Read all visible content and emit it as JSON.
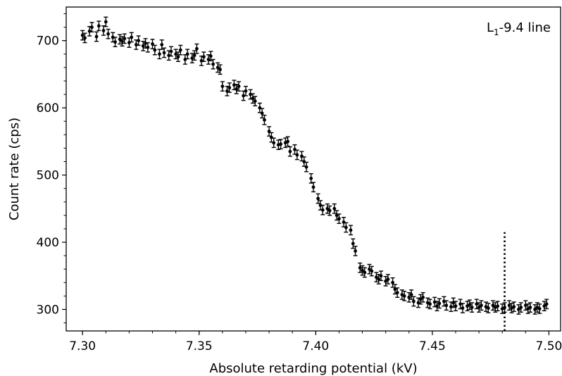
{
  "chart_data": {
    "type": "scatter",
    "title": "",
    "xlabel": "Absolute retarding potential (kV)",
    "ylabel": "Count rate (cps)",
    "annotation": {
      "base": "L",
      "sub": "1",
      "rest": "-9.4 line"
    },
    "xlim": [
      7.293,
      7.505
    ],
    "ylim": [
      268,
      750
    ],
    "xticks": [
      7.3,
      7.35,
      7.4,
      7.45,
      7.5
    ],
    "xtick_labels": [
      "7.30",
      "7.35",
      "7.40",
      "7.45",
      "7.50"
    ],
    "yticks": [
      300,
      400,
      500,
      600,
      700
    ],
    "ytick_labels": [
      "300",
      "400",
      "500",
      "600",
      "700"
    ],
    "grid": false,
    "reference_line": {
      "x": 7.481,
      "ymax": 415,
      "style": "dotted"
    },
    "error_bar_half_height": 7,
    "marker_color": "#000000",
    "series": [
      {
        "points": [
          [
            7.3,
            708
          ],
          [
            7.301,
            704
          ],
          [
            7.303,
            714
          ],
          [
            7.304,
            720
          ],
          [
            7.306,
            706
          ],
          [
            7.307,
            722
          ],
          [
            7.309,
            715
          ],
          [
            7.31,
            728
          ],
          [
            7.311,
            710
          ],
          [
            7.313,
            705
          ],
          [
            7.314,
            698
          ],
          [
            7.316,
            702
          ],
          [
            7.317,
            699
          ],
          [
            7.318,
            703
          ],
          [
            7.32,
            697
          ],
          [
            7.321,
            705
          ],
          [
            7.323,
            694
          ],
          [
            7.324,
            700
          ],
          [
            7.326,
            692
          ],
          [
            7.327,
            696
          ],
          [
            7.328,
            690
          ],
          [
            7.33,
            695
          ],
          [
            7.331,
            686
          ],
          [
            7.333,
            680
          ],
          [
            7.334,
            694
          ],
          [
            7.335,
            682
          ],
          [
            7.337,
            678
          ],
          [
            7.338,
            684
          ],
          [
            7.34,
            680
          ],
          [
            7.341,
            676
          ],
          [
            7.342,
            686
          ],
          [
            7.344,
            672
          ],
          [
            7.345,
            680
          ],
          [
            7.347,
            674
          ],
          [
            7.348,
            678
          ],
          [
            7.349,
            688
          ],
          [
            7.351,
            670
          ],
          [
            7.352,
            676
          ],
          [
            7.354,
            672
          ],
          [
            7.355,
            677
          ],
          [
            7.356,
            665
          ],
          [
            7.358,
            660
          ],
          [
            7.359,
            657
          ],
          [
            7.36,
            632
          ],
          [
            7.362,
            625
          ],
          [
            7.363,
            630
          ],
          [
            7.365,
            634
          ],
          [
            7.366,
            628
          ],
          [
            7.367,
            632
          ],
          [
            7.369,
            618
          ],
          [
            7.37,
            625
          ],
          [
            7.372,
            620
          ],
          [
            7.373,
            614
          ],
          [
            7.374,
            610
          ],
          [
            7.376,
            600
          ],
          [
            7.377,
            592
          ],
          [
            7.378,
            582
          ],
          [
            7.38,
            565
          ],
          [
            7.381,
            556
          ],
          [
            7.382,
            548
          ],
          [
            7.384,
            545
          ],
          [
            7.385,
            546
          ],
          [
            7.387,
            548
          ],
          [
            7.388,
            550
          ],
          [
            7.389,
            535
          ],
          [
            7.391,
            538
          ],
          [
            7.392,
            530
          ],
          [
            7.394,
            528
          ],
          [
            7.395,
            520
          ],
          [
            7.396,
            512
          ],
          [
            7.398,
            495
          ],
          [
            7.399,
            482
          ],
          [
            7.401,
            465
          ],
          [
            7.402,
            455
          ],
          [
            7.403,
            448
          ],
          [
            7.405,
            450
          ],
          [
            7.406,
            447
          ],
          [
            7.408,
            450
          ],
          [
            7.409,
            440
          ],
          [
            7.41,
            435
          ],
          [
            7.412,
            430
          ],
          [
            7.413,
            422
          ],
          [
            7.415,
            418
          ],
          [
            7.416,
            398
          ],
          [
            7.417,
            387
          ],
          [
            7.419,
            362
          ],
          [
            7.42,
            358
          ],
          [
            7.421,
            355
          ],
          [
            7.423,
            360
          ],
          [
            7.424,
            357
          ],
          [
            7.426,
            348
          ],
          [
            7.427,
            345
          ],
          [
            7.428,
            350
          ],
          [
            7.43,
            342
          ],
          [
            7.431,
            345
          ],
          [
            7.433,
            340
          ],
          [
            7.434,
            330
          ],
          [
            7.435,
            325
          ],
          [
            7.437,
            322
          ],
          [
            7.438,
            320
          ],
          [
            7.44,
            318
          ],
          [
            7.441,
            322
          ],
          [
            7.442,
            312
          ],
          [
            7.444,
            310
          ],
          [
            7.445,
            315
          ],
          [
            7.446,
            318
          ],
          [
            7.448,
            310
          ],
          [
            7.449,
            308
          ],
          [
            7.451,
            311
          ],
          [
            7.452,
            305
          ],
          [
            7.453,
            309
          ],
          [
            7.455,
            312
          ],
          [
            7.456,
            306
          ],
          [
            7.458,
            304
          ],
          [
            7.459,
            310
          ],
          [
            7.46,
            305
          ],
          [
            7.462,
            308
          ],
          [
            7.463,
            302
          ],
          [
            7.465,
            305
          ],
          [
            7.466,
            307
          ],
          [
            7.467,
            303
          ],
          [
            7.469,
            308
          ],
          [
            7.47,
            303
          ],
          [
            7.471,
            306
          ],
          [
            7.473,
            304
          ],
          [
            7.474,
            302
          ],
          [
            7.476,
            306
          ],
          [
            7.477,
            303
          ],
          [
            7.478,
            305
          ],
          [
            7.48,
            301
          ],
          [
            7.481,
            303
          ],
          [
            7.483,
            306
          ],
          [
            7.484,
            302
          ],
          [
            7.485,
            304
          ],
          [
            7.487,
            300
          ],
          [
            7.488,
            303
          ],
          [
            7.49,
            306
          ],
          [
            7.491,
            301
          ],
          [
            7.492,
            303
          ],
          [
            7.494,
            300
          ],
          [
            7.495,
            303
          ],
          [
            7.496,
            301
          ],
          [
            7.498,
            305
          ],
          [
            7.499,
            308
          ]
        ]
      }
    ]
  }
}
